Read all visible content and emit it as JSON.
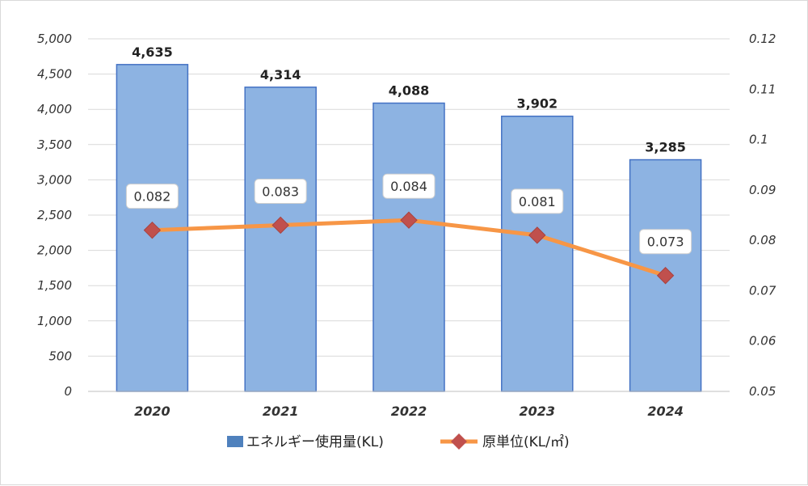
{
  "chart_data": {
    "type": "bar+line",
    "categories": [
      "2020",
      "2021",
      "2022",
      "2023",
      "2024"
    ],
    "series": [
      {
        "name": "エネルギー使用量(KL)",
        "type": "bar",
        "axis": "left",
        "values": [
          4635,
          4314,
          4088,
          3902,
          3285
        ],
        "labels": [
          "4,635",
          "4,314",
          "4,088",
          "3,902",
          "3,285"
        ],
        "color": "#8db3e2",
        "border_color": "#4472c4"
      },
      {
        "name": "原単位(KL/㎡)",
        "type": "line",
        "axis": "right",
        "values": [
          0.082,
          0.083,
          0.084,
          0.081,
          0.073
        ],
        "labels": [
          "0.082",
          "0.083",
          "0.084",
          "0.081",
          "0.073"
        ],
        "line_color": "#f79646",
        "marker_color": "#c0504d",
        "marker": "diamond"
      }
    ],
    "y_left": {
      "ylim": [
        0,
        5000
      ],
      "ticks": [
        "0",
        "500",
        "1,000",
        "1,500",
        "2,000",
        "2,500",
        "3,000",
        "3,500",
        "4,000",
        "4,500",
        "5,000"
      ]
    },
    "y_right": {
      "ylim": [
        0.05,
        0.12
      ],
      "ticks": [
        "0.05",
        "0.06",
        "0.07",
        "0.08",
        "0.09",
        "0.1",
        "0.11",
        "0.12"
      ]
    },
    "grid": true,
    "legend_position": "bottom",
    "legend_colors": {
      "bar": "#4f81bd",
      "line": "#f79646",
      "marker": "#c0504d"
    }
  }
}
